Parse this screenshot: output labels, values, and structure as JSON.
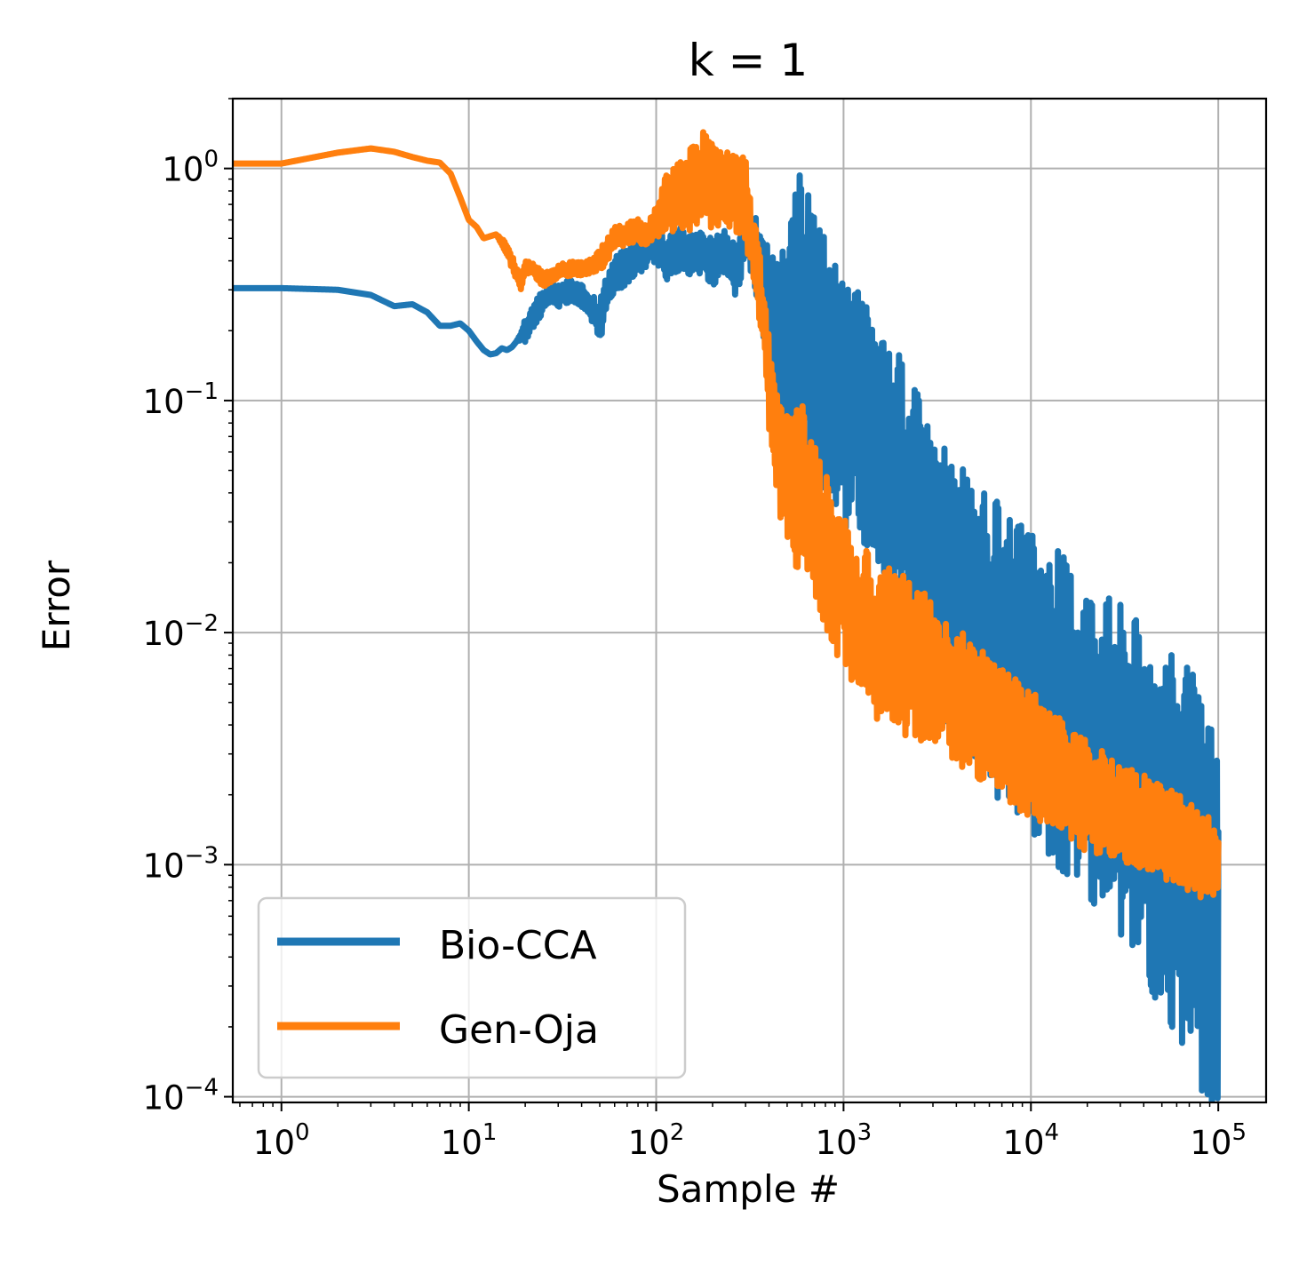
{
  "chart_data": {
    "type": "line",
    "title": "k = 1",
    "xlabel": "Sample #",
    "ylabel": "Error",
    "x_scale": "log",
    "y_scale": "log",
    "xlim": [
      0.55,
      180000
    ],
    "ylim": [
      9.45e-05,
      2.0
    ],
    "grid": true,
    "legend_position": "lower-left",
    "x_ticks": [
      {
        "base": "10",
        "exp": "0",
        "value": 1
      },
      {
        "base": "10",
        "exp": "1",
        "value": 10
      },
      {
        "base": "10",
        "exp": "2",
        "value": 100
      },
      {
        "base": "10",
        "exp": "3",
        "value": 1000
      },
      {
        "base": "10",
        "exp": "4",
        "value": 10000
      },
      {
        "base": "10",
        "exp": "5",
        "value": 100000
      }
    ],
    "y_ticks": [
      {
        "base": "10",
        "exp": "0",
        "value": 1
      },
      {
        "base": "10",
        "exp": "−1",
        "value": 0.1
      },
      {
        "base": "10",
        "exp": "−2",
        "value": 0.01
      },
      {
        "base": "10",
        "exp": "−3",
        "value": 0.001
      },
      {
        "base": "10",
        "exp": "−4",
        "value": 0.0001
      }
    ],
    "series": [
      {
        "name": "Bio-CCA",
        "color": "#1f77b4",
        "x": [
          0.5,
          1,
          2,
          3,
          4,
          5,
          6,
          7,
          8,
          9,
          10,
          11,
          12,
          13,
          14,
          15,
          16,
          17,
          18,
          20,
          22,
          25,
          28,
          30,
          35,
          40,
          45,
          50,
          55,
          60,
          70,
          80,
          90,
          100,
          110,
          130,
          150,
          180,
          200,
          230,
          260,
          280,
          300,
          330,
          360,
          400,
          450,
          500,
          550,
          600,
          650,
          700,
          800,
          900,
          1000,
          1200,
          1500,
          2000,
          2500,
          3000,
          4000,
          5000,
          7000,
          10000,
          15000,
          20000,
          30000,
          50000,
          70000,
          90000,
          100000
        ],
        "y": [
          0.305,
          0.305,
          0.3,
          0.285,
          0.255,
          0.26,
          0.24,
          0.21,
          0.21,
          0.215,
          0.2,
          0.18,
          0.165,
          0.158,
          0.16,
          0.168,
          0.165,
          0.17,
          0.18,
          0.2,
          0.23,
          0.27,
          0.3,
          0.28,
          0.3,
          0.28,
          0.25,
          0.22,
          0.3,
          0.35,
          0.38,
          0.42,
          0.45,
          0.5,
          0.4,
          0.45,
          0.42,
          0.43,
          0.39,
          0.45,
          0.36,
          0.42,
          0.55,
          0.45,
          0.38,
          0.22,
          0.17,
          0.2,
          0.25,
          0.3,
          0.22,
          0.18,
          0.14,
          0.12,
          0.1,
          0.085,
          0.06,
          0.04,
          0.028,
          0.02,
          0.014,
          0.011,
          0.008,
          0.006,
          0.0045,
          0.0035,
          0.0025,
          0.0015,
          0.001,
          0.0006,
          0.0005
        ],
        "spread": [
          0,
          0,
          0,
          0,
          0,
          0,
          0,
          0,
          0,
          0,
          0,
          0,
          0,
          0,
          0,
          0,
          0,
          0,
          0,
          0.05,
          0.05,
          0.05,
          0.05,
          0.05,
          0.05,
          0.05,
          0.08,
          0.1,
          0.08,
          0.08,
          0.08,
          0.08,
          0.08,
          0.1,
          0.1,
          0.1,
          0.1,
          0.1,
          0.1,
          0.1,
          0.12,
          0.12,
          0.12,
          0.15,
          0.2,
          0.3,
          0.4,
          0.45,
          0.5,
          0.55,
          0.55,
          0.55,
          0.55,
          0.55,
          0.55,
          0.55,
          0.55,
          0.6,
          0.6,
          0.6,
          0.6,
          0.6,
          0.65,
          0.65,
          0.7,
          0.7,
          0.75,
          0.8,
          0.85,
          0.9,
          0.9
        ]
      },
      {
        "name": "Gen-Oja",
        "color": "#ff7f0e",
        "x": [
          0.5,
          1,
          2,
          3,
          4,
          5,
          6,
          7,
          8,
          9,
          10,
          11,
          12,
          14,
          16,
          18,
          19,
          20,
          22,
          25,
          28,
          30,
          35,
          40,
          45,
          50,
          55,
          60,
          70,
          80,
          90,
          100,
          110,
          130,
          150,
          180,
          200,
          230,
          260,
          300,
          320,
          350,
          380,
          400,
          450,
          500,
          550,
          600,
          650,
          700,
          800,
          900,
          1000,
          1200,
          1500,
          2000,
          2500,
          3000,
          4000,
          5000,
          7000,
          10000,
          15000,
          20000,
          30000,
          50000,
          70000,
          90000,
          100000
        ],
        "y": [
          1.05,
          1.05,
          1.17,
          1.22,
          1.18,
          1.12,
          1.08,
          1.06,
          0.95,
          0.75,
          0.6,
          0.56,
          0.5,
          0.52,
          0.45,
          0.35,
          0.32,
          0.38,
          0.37,
          0.33,
          0.35,
          0.36,
          0.37,
          0.37,
          0.38,
          0.4,
          0.45,
          0.5,
          0.52,
          0.55,
          0.5,
          0.6,
          0.7,
          0.75,
          0.8,
          0.95,
          0.85,
          0.8,
          0.78,
          0.75,
          0.5,
          0.35,
          0.2,
          0.12,
          0.06,
          0.045,
          0.04,
          0.045,
          0.035,
          0.03,
          0.022,
          0.018,
          0.015,
          0.011,
          0.009,
          0.008,
          0.0075,
          0.0065,
          0.0055,
          0.0045,
          0.0037,
          0.003,
          0.0024,
          0.002,
          0.0017,
          0.0014,
          0.0012,
          0.00105,
          0.001
        ],
        "spread": [
          0,
          0,
          0,
          0,
          0,
          0,
          0,
          0,
          0,
          0,
          0,
          0,
          0,
          0,
          0.03,
          0.03,
          0.03,
          0.03,
          0.03,
          0.03,
          0.03,
          0.03,
          0.03,
          0.03,
          0.03,
          0.05,
          0.05,
          0.05,
          0.05,
          0.05,
          0.05,
          0.08,
          0.12,
          0.15,
          0.18,
          0.2,
          0.2,
          0.18,
          0.18,
          0.18,
          0.15,
          0.15,
          0.15,
          0.2,
          0.25,
          0.3,
          0.35,
          0.35,
          0.35,
          0.35,
          0.35,
          0.35,
          0.35,
          0.35,
          0.35,
          0.35,
          0.35,
          0.3,
          0.3,
          0.3,
          0.28,
          0.28,
          0.25,
          0.25,
          0.22,
          0.2,
          0.2,
          0.18,
          0.1
        ]
      }
    ]
  }
}
